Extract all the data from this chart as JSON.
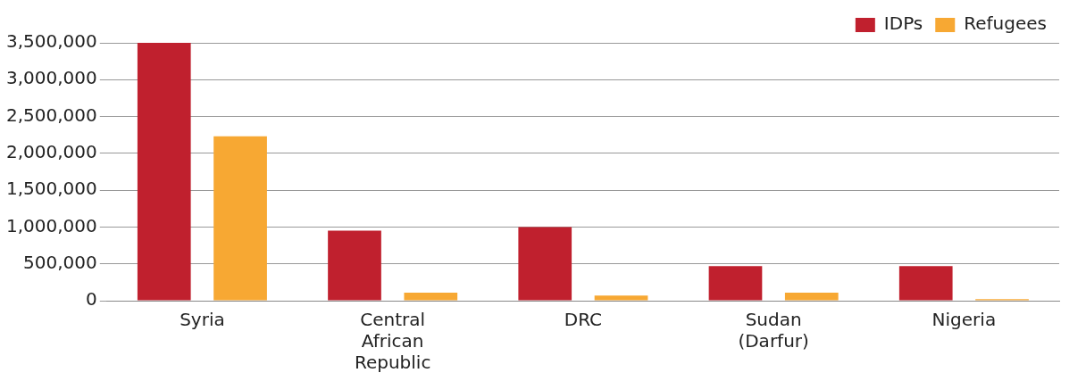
{
  "chart_data": {
    "type": "bar",
    "categories": [
      "Syria",
      "Central African Republic",
      "DRC",
      "Sudan (Darfur)",
      "Nigeria"
    ],
    "series": [
      {
        "name": "IDPs",
        "color": "#c0202e",
        "values": [
          3500000,
          950000,
          1000000,
          470000,
          470000
        ]
      },
      {
        "name": "Refugees",
        "color": "#f7a833",
        "values": [
          2230000,
          110000,
          70000,
          110000,
          20000
        ]
      }
    ],
    "ylim": [
      0,
      3500000
    ],
    "yticks": [
      0,
      {
        "value": 500000,
        "label": "500,000"
      },
      {
        "value": 1000000,
        "label": "1,000,000"
      },
      {
        "value": 1500000,
        "label": "1,500,000"
      },
      {
        "value": 2000000,
        "label": "2,000,000"
      },
      {
        "value": 2500000,
        "label": "2,500,000"
      },
      {
        "value": 3000000,
        "label": "3,000,000"
      },
      {
        "value": 3500000,
        "label": "3,500,000"
      }
    ],
    "grid": "y",
    "legend": "top right"
  }
}
